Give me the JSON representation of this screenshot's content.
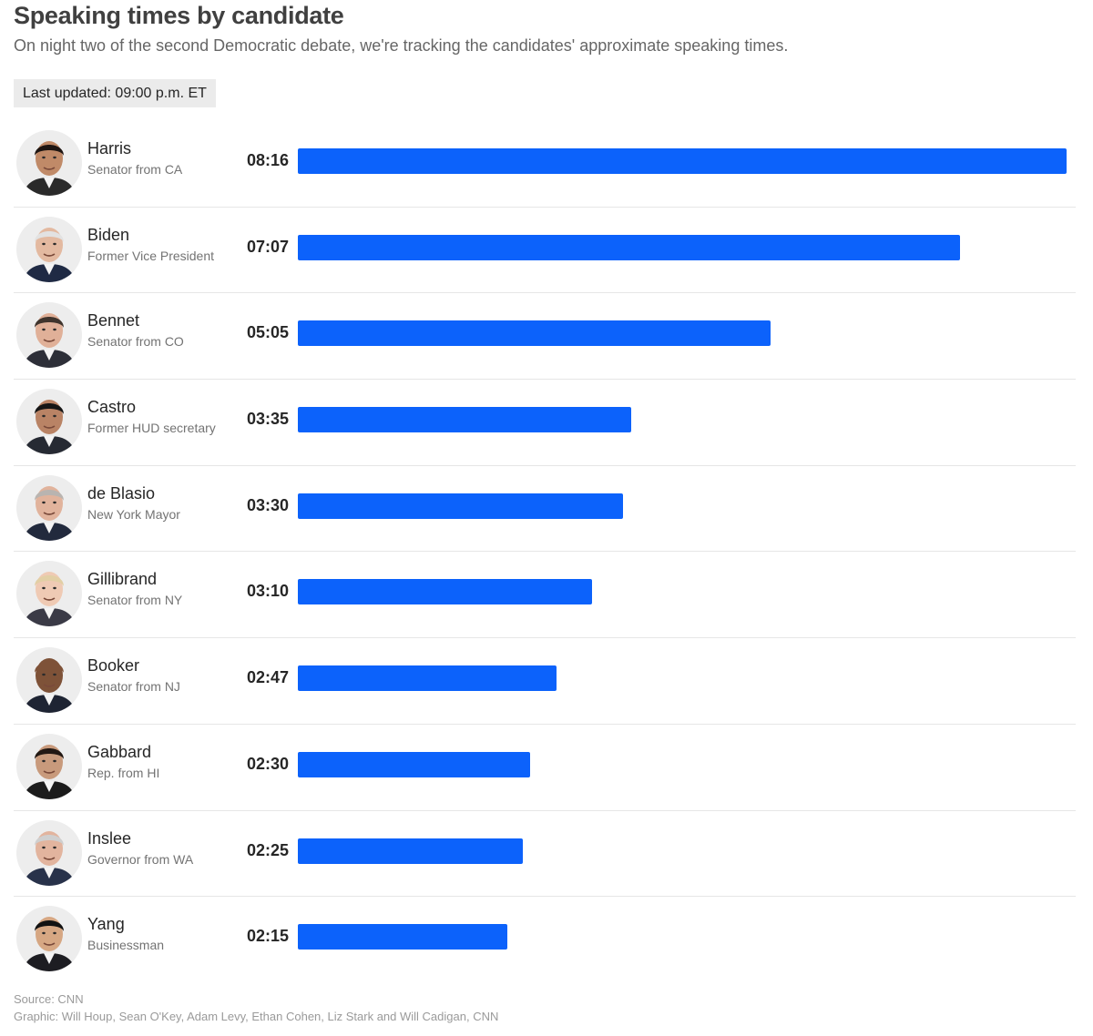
{
  "chart_data": {
    "type": "bar",
    "orientation": "horizontal",
    "title": "Speaking times by candidate",
    "subtitle": "On night two of the second Democratic debate, we're tracking the candidates' approximate speaking times.",
    "last_updated": "Last updated: 09:00 p.m. ET",
    "value_unit": "seconds",
    "xlim": [
      0,
      496
    ],
    "bar_color": "#0c62fb",
    "categories": [
      "Harris",
      "Biden",
      "Bennet",
      "Castro",
      "de Blasio",
      "Gillibrand",
      "Booker",
      "Gabbard",
      "Inslee",
      "Yang"
    ],
    "candidates": [
      {
        "name": "Harris",
        "role": "Senator from CA",
        "time_label": "08:16",
        "seconds": 496,
        "skin": "#c08a68",
        "hair": "#1e1512",
        "suit": "#2a2a2a"
      },
      {
        "name": "Biden",
        "role": "Former Vice President",
        "time_label": "07:07",
        "seconds": 427,
        "skin": "#e3b9a0",
        "hair": "#e2e2e2",
        "suit": "#1f2a44"
      },
      {
        "name": "Bennet",
        "role": "Senator from CO",
        "time_label": "05:05",
        "seconds": 305,
        "skin": "#e0b098",
        "hair": "#3f342d",
        "suit": "#2d2f38"
      },
      {
        "name": "Castro",
        "role": "Former HUD secretary",
        "time_label": "03:35",
        "seconds": 215,
        "skin": "#b98365",
        "hair": "#161616",
        "suit": "#262a33"
      },
      {
        "name": "de Blasio",
        "role": "New York Mayor",
        "time_label": "03:30",
        "seconds": 210,
        "skin": "#e1b39c",
        "hair": "#b9b4b0",
        "suit": "#222a3d"
      },
      {
        "name": "Gillibrand",
        "role": "Senator from NY",
        "time_label": "03:10",
        "seconds": 190,
        "skin": "#efcab4",
        "hair": "#e2cfa5",
        "suit": "#3a3a46"
      },
      {
        "name": "Booker",
        "role": "Senator from NJ",
        "time_label": "02:47",
        "seconds": 167,
        "skin": "#7e5238",
        "hair": "#7e5238",
        "suit": "#1e2433"
      },
      {
        "name": "Gabbard",
        "role": "Rep. from HI",
        "time_label": "02:30",
        "seconds": 150,
        "skin": "#c89a7c",
        "hair": "#221813",
        "suit": "#1b1b1b"
      },
      {
        "name": "Inslee",
        "role": "Governor from WA",
        "time_label": "02:25",
        "seconds": 145,
        "skin": "#e2b49e",
        "hair": "#cfcfcf",
        "suit": "#28324a"
      },
      {
        "name": "Yang",
        "role": "Businessman",
        "time_label": "02:15",
        "seconds": 135,
        "skin": "#d6a783",
        "hair": "#121212",
        "suit": "#1d1d22"
      }
    ],
    "source": "Source: CNN",
    "credit": "Graphic: Will Houp, Sean O'Key, Adam Levy, Ethan Cohen, Liz Stark and Will Cadigan, CNN"
  }
}
